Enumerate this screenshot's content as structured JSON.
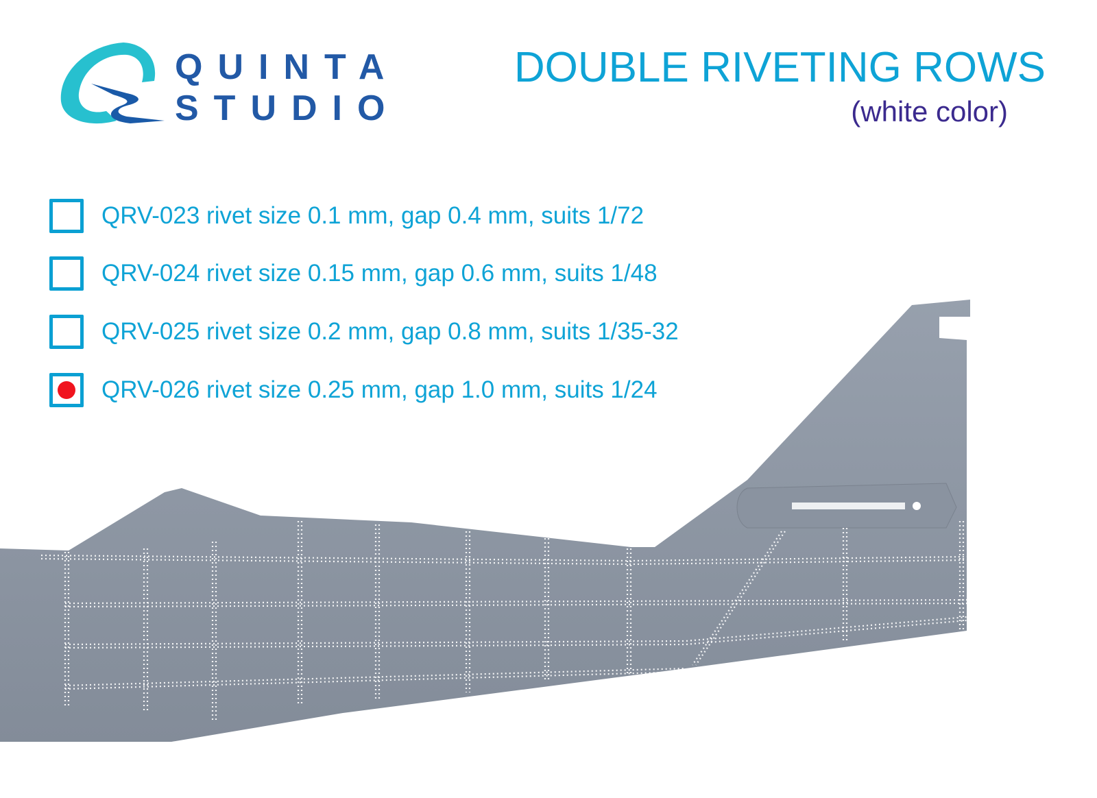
{
  "logo": {
    "line1": "QUINTA",
    "line2": "STUDIO"
  },
  "header": {
    "title": "DOUBLE RIVETING ROWS",
    "subtitle": "(white color)"
  },
  "options": [
    {
      "label": "QRV-023 rivet size 0.1 mm, gap 0.4 mm, suits 1/72",
      "selected": false
    },
    {
      "label": "QRV-024 rivet size 0.15 mm, gap 0.6 mm, suits 1/48",
      "selected": false
    },
    {
      "label": "QRV-025 rivet size 0.2 mm, gap 0.8 mm, suits 1/35-32",
      "selected": false
    },
    {
      "label": "QRV-026 rivet size 0.25 mm, gap 1.0 mm, suits 1/24",
      "selected": true
    }
  ],
  "colors": {
    "accent": "#0ea3d6",
    "brand": "#2259a6",
    "subtitle": "#3b2a8e",
    "selected_marker": "#f0141e",
    "fuselage": "#8e97a4",
    "rivets": "#ffffff"
  }
}
